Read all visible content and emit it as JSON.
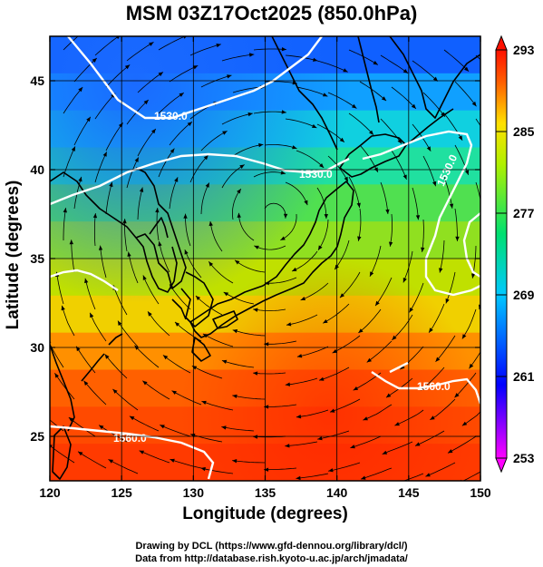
{
  "title": "MSM 03Z17Oct2025 (850.0hPa)",
  "credits": {
    "line1": "Drawing by DCL (https://www.gfd-dennou.org/library/dcl/)",
    "line2": "Data from http://database.rish.kyoto-u.ac.jp/arch/jmadata/"
  },
  "axes": {
    "x": {
      "label": "Longitude (degrees)",
      "range": [
        120,
        150
      ],
      "ticks": [
        "120",
        "125",
        "130",
        "135",
        "140",
        "145",
        "150"
      ]
    },
    "y": {
      "label": "Latitude  (degrees)",
      "range": [
        22.5,
        47.5
      ],
      "ticks": [
        "25",
        "30",
        "35",
        "40",
        "45"
      ]
    }
  },
  "colorbar": {
    "range": [
      253,
      293
    ],
    "labels": [
      "293",
      "285",
      "277",
      "269",
      "261",
      "253"
    ],
    "colormap": [
      "#ff00ff",
      "#0000ff",
      "#00c0ff",
      "#00ff80",
      "#ffff00",
      "#ff8000",
      "#ff0000"
    ]
  },
  "contours": {
    "color": "#ffffff",
    "labels": [
      "1560.0",
      "1530.0",
      "1530.0",
      "1530.0",
      "1560.0",
      "1560.0"
    ]
  },
  "map": {
    "field": "temperature (K) shaded, streamlines of wind, geopotential height contours",
    "coastline_color": "#000000",
    "streamline_color": "#000000"
  }
}
